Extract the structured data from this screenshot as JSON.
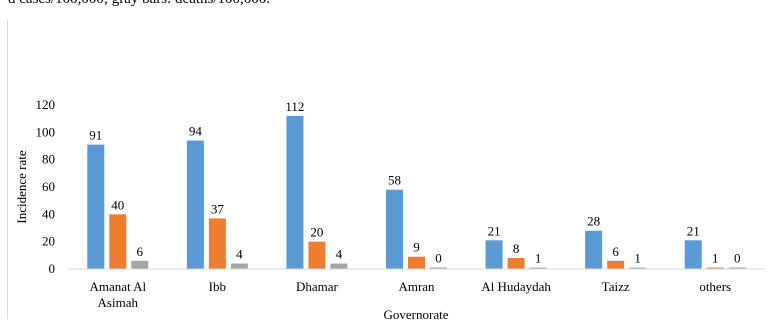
{
  "caption": "d cases/100,000; gray bars: deaths/100,000.",
  "chart_data": {
    "type": "bar",
    "xlabel": "Governorate",
    "ylabel": "Incidence  rate",
    "ylim": [
      0,
      120
    ],
    "yticks": [
      0,
      20,
      40,
      60,
      80,
      100,
      120
    ],
    "grid": false,
    "legend": "none",
    "categories": [
      "Amanat Al Asimah",
      "Ibb",
      "Dhamar",
      "Amran",
      "Al Hudaydah",
      "Taizz",
      "others"
    ],
    "series": [
      {
        "color": "#5b9bd5",
        "values": [
          91,
          94,
          112,
          58,
          21,
          28,
          21
        ]
      },
      {
        "color": "#ed7d31",
        "values": [
          40,
          37,
          20,
          9,
          8,
          6,
          1
        ]
      },
      {
        "color": "#a5a5a5",
        "values": [
          6,
          4,
          4,
          0,
          1,
          1,
          0
        ]
      }
    ]
  }
}
